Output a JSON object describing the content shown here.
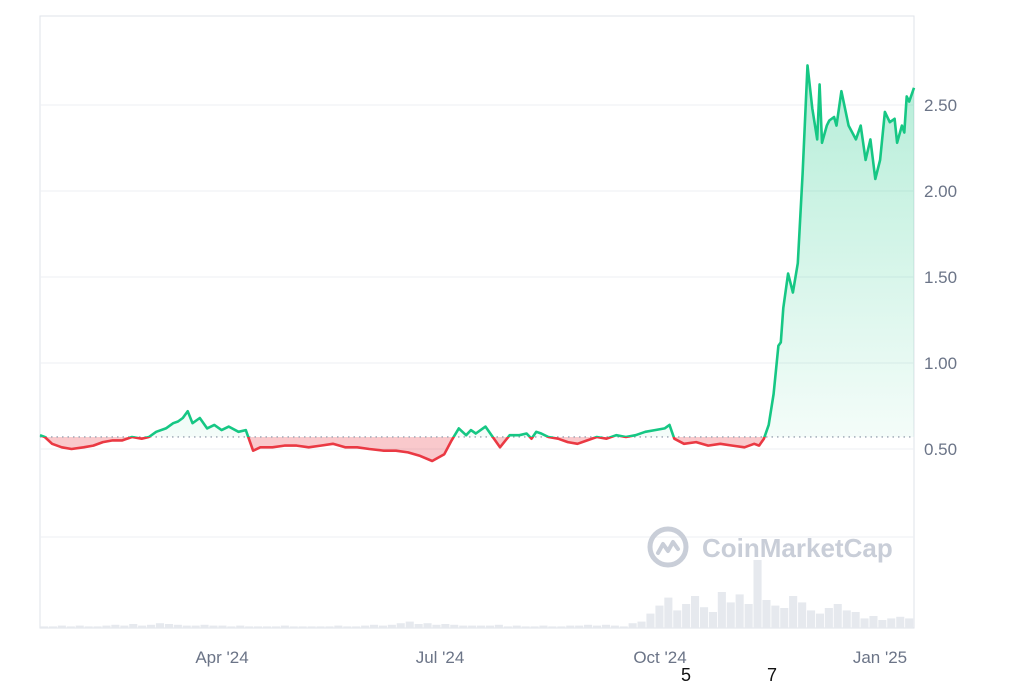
{
  "chart_data": {
    "type": "line",
    "title": "",
    "xlabel": "",
    "ylabel": "",
    "x_tick_labels": [
      "Apr '24",
      "Jul '24",
      "Oct '24",
      "Jan '25"
    ],
    "y_tick_labels": [
      "0.50",
      "1.00",
      "1.50",
      "2.00",
      "2.50"
    ],
    "y_ticks": [
      0.5,
      1.0,
      1.5,
      2.0,
      2.5
    ],
    "ylim": [
      0.0,
      3.5
    ],
    "xlim": [
      "2024-01-15",
      "2025-01-10"
    ],
    "baseline": 0.57,
    "baseline_style": "dotted",
    "above_baseline_color": "#16c784",
    "below_baseline_color": "#ea3943",
    "grid": "horizontal",
    "series": [
      {
        "dates": [
          "2024-01-15",
          "2024-01-17",
          "2024-01-20",
          "2024-01-24",
          "2024-01-28",
          "2024-02-02",
          "2024-02-06",
          "2024-02-10",
          "2024-02-14",
          "2024-02-18",
          "2024-02-22",
          "2024-02-26",
          "2024-02-29",
          "2024-03-03",
          "2024-03-07",
          "2024-03-10",
          "2024-03-12",
          "2024-03-14",
          "2024-03-16",
          "2024-03-18",
          "2024-03-21",
          "2024-03-24",
          "2024-03-27",
          "2024-03-30",
          "2024-04-02",
          "2024-04-06",
          "2024-04-09",
          "2024-04-12",
          "2024-04-15",
          "2024-04-20",
          "2024-04-25",
          "2024-04-30",
          "2024-05-05",
          "2024-05-10",
          "2024-05-15",
          "2024-05-20",
          "2024-05-25",
          "2024-05-30",
          "2024-06-05",
          "2024-06-10",
          "2024-06-15",
          "2024-06-20",
          "2024-06-25",
          "2024-06-30",
          "2024-07-03",
          "2024-07-06",
          "2024-07-09",
          "2024-07-11",
          "2024-07-13",
          "2024-07-15",
          "2024-07-17",
          "2024-07-19",
          "2024-07-23",
          "2024-07-27",
          "2024-07-31",
          "2024-08-03",
          "2024-08-05",
          "2024-08-07",
          "2024-08-09",
          "2024-08-12",
          "2024-08-16",
          "2024-08-20",
          "2024-08-24",
          "2024-08-28",
          "2024-09-01",
          "2024-09-05",
          "2024-09-09",
          "2024-09-13",
          "2024-09-17",
          "2024-09-21",
          "2024-09-25",
          "2024-09-29",
          "2024-10-01",
          "2024-10-03",
          "2024-10-07",
          "2024-10-12",
          "2024-10-17",
          "2024-10-22",
          "2024-10-27",
          "2024-11-01",
          "2024-11-05",
          "2024-11-07",
          "2024-11-09",
          "2024-11-11",
          "2024-11-13",
          "2024-11-15",
          "2024-11-16",
          "2024-11-17",
          "2024-11-19",
          "2024-11-21",
          "2024-11-23",
          "2024-11-25",
          "2024-11-27",
          "2024-11-29",
          "2024-12-01",
          "2024-12-02",
          "2024-12-03",
          "2024-12-05",
          "2024-12-06",
          "2024-12-08",
          "2024-12-09",
          "2024-12-11",
          "2024-12-14",
          "2024-12-17",
          "2024-12-19",
          "2024-12-21",
          "2024-12-23",
          "2024-12-25",
          "2024-12-27",
          "2024-12-29",
          "2024-12-31",
          "2025-01-02",
          "2025-01-03",
          "2025-01-05",
          "2025-01-06",
          "2025-01-07",
          "2025-01-08",
          "2025-01-10"
        ],
        "values": [
          0.58,
          0.57,
          0.53,
          0.51,
          0.5,
          0.51,
          0.52,
          0.54,
          0.55,
          0.55,
          0.57,
          0.56,
          0.57,
          0.6,
          0.62,
          0.65,
          0.66,
          0.68,
          0.72,
          0.65,
          0.68,
          0.62,
          0.64,
          0.61,
          0.63,
          0.6,
          0.61,
          0.49,
          0.51,
          0.51,
          0.52,
          0.52,
          0.51,
          0.52,
          0.53,
          0.51,
          0.51,
          0.5,
          0.49,
          0.49,
          0.48,
          0.46,
          0.43,
          0.47,
          0.55,
          0.62,
          0.58,
          0.61,
          0.59,
          0.61,
          0.63,
          0.59,
          0.51,
          0.58,
          0.58,
          0.59,
          0.56,
          0.6,
          0.59,
          0.57,
          0.56,
          0.54,
          0.53,
          0.55,
          0.57,
          0.56,
          0.58,
          0.57,
          0.58,
          0.6,
          0.61,
          0.62,
          0.64,
          0.56,
          0.53,
          0.54,
          0.52,
          0.53,
          0.52,
          0.51,
          0.53,
          0.52,
          0.56,
          0.64,
          0.82,
          1.1,
          1.12,
          1.32,
          1.52,
          1.41,
          1.58,
          2.1,
          2.73,
          2.48,
          2.3,
          2.62,
          2.28,
          2.38,
          2.41,
          2.43,
          2.38,
          2.58,
          2.38,
          2.3,
          2.38,
          2.18,
          2.3,
          2.07,
          2.18,
          2.46,
          2.4,
          2.42,
          2.28,
          2.38,
          2.34,
          2.55,
          2.52,
          2.6
        ]
      }
    ],
    "volume_series": [
      0.02,
      0.02,
      0.03,
      0.02,
      0.03,
      0.02,
      0.02,
      0.03,
      0.04,
      0.03,
      0.05,
      0.03,
      0.04,
      0.06,
      0.05,
      0.04,
      0.03,
      0.03,
      0.04,
      0.03,
      0.03,
      0.02,
      0.03,
      0.02,
      0.02,
      0.02,
      0.02,
      0.03,
      0.02,
      0.02,
      0.02,
      0.02,
      0.02,
      0.03,
      0.02,
      0.02,
      0.03,
      0.04,
      0.03,
      0.04,
      0.06,
      0.08,
      0.05,
      0.06,
      0.04,
      0.05,
      0.04,
      0.03,
      0.03,
      0.03,
      0.03,
      0.04,
      0.02,
      0.03,
      0.02,
      0.02,
      0.03,
      0.02,
      0.02,
      0.03,
      0.03,
      0.04,
      0.03,
      0.04,
      0.03,
      0.02,
      0.06,
      0.08,
      0.18,
      0.28,
      0.38,
      0.22,
      0.3,
      0.4,
      0.26,
      0.2,
      0.45,
      0.32,
      0.42,
      0.3,
      0.85,
      0.35,
      0.28,
      0.25,
      0.4,
      0.32,
      0.22,
      0.18,
      0.25,
      0.3,
      0.22,
      0.2,
      0.12,
      0.15,
      0.1,
      0.12,
      0.14,
      0.12
    ]
  },
  "watermark": {
    "text": "CoinMarketCap",
    "icon": "coinmarketcap-logo-icon"
  },
  "stray_labels": [
    "5",
    "7"
  ]
}
